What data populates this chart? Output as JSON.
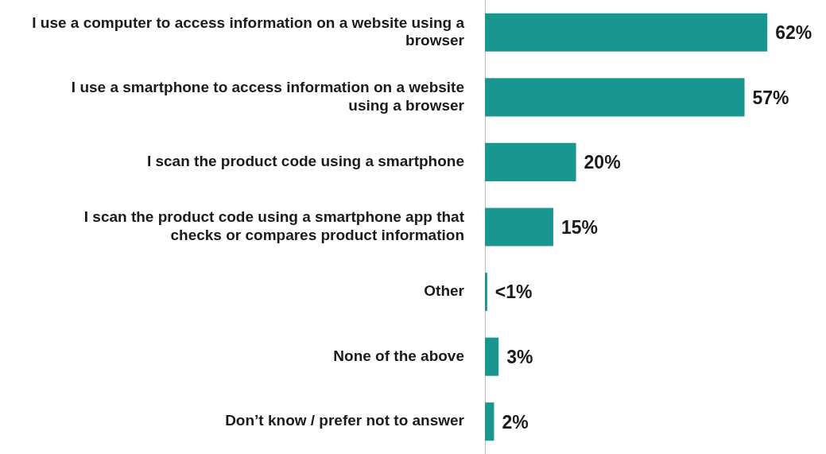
{
  "chart_data": {
    "type": "bar",
    "orientation": "horizontal",
    "categories": [
      "I use a computer to access information on a website using a browser",
      "I use a smartphone to access information on a website using a browser",
      "I scan the product code using a smartphone",
      "I scan the product code using a smartphone app that checks or compares product information",
      "Other",
      "None of the above",
      "Don’t know / prefer not to answer"
    ],
    "values": [
      62,
      57,
      20,
      15,
      0.5,
      3,
      2
    ],
    "value_labels": [
      "62%",
      "57%",
      "20%",
      "15%",
      "<1%",
      "3%",
      "2%"
    ],
    "color": "#1a9690",
    "legend": false
  }
}
